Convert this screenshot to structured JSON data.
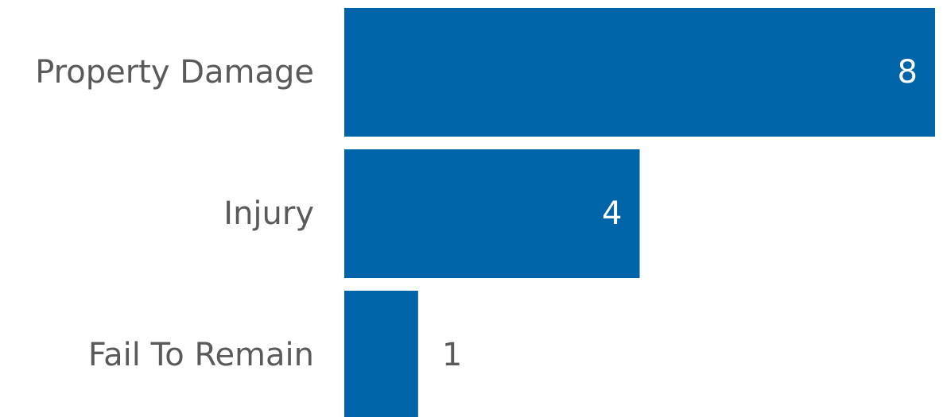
{
  "chart_data": {
    "type": "bar",
    "orientation": "horizontal",
    "categories": [
      "Property Damage",
      "Injury",
      "Fail To Remain"
    ],
    "values": [
      8,
      4,
      1
    ],
    "xlim": [
      0,
      8
    ],
    "grid": false,
    "colors": {
      "bar": "#0064A8",
      "label": "#5a5a5a",
      "value_inside": "#ffffff",
      "value_outside": "#5a5a5a"
    }
  }
}
